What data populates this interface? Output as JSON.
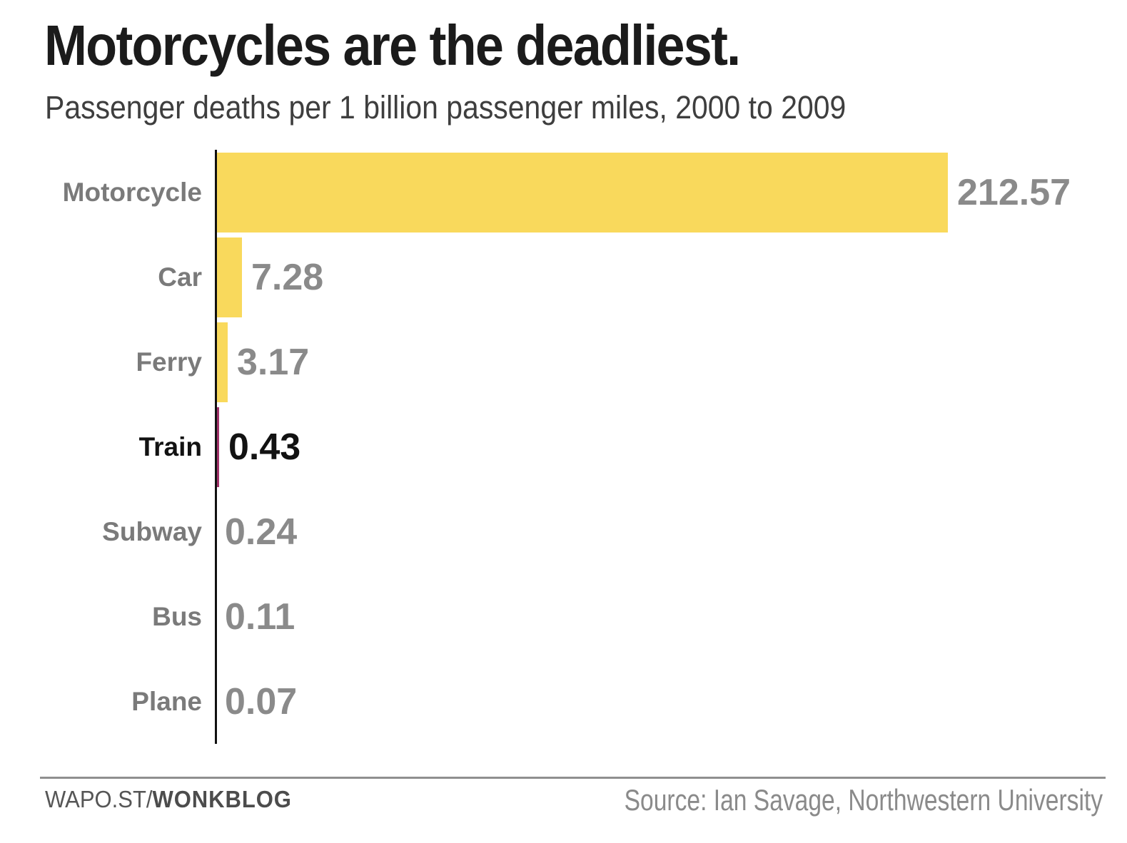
{
  "header": {
    "title": "Motorcycles are the deadliest.",
    "subtitle": "Passenger deaths per 1 billion passenger miles, 2000 to 2009"
  },
  "chart_data": {
    "type": "bar",
    "orientation": "horizontal",
    "title": "Motorcycles are the deadliest.",
    "subtitle": "Passenger deaths per 1 billion passenger miles, 2000 to 2009",
    "categories": [
      "Motorcycle",
      "Car",
      "Ferry",
      "Train",
      "Subway",
      "Bus",
      "Plane"
    ],
    "values": [
      212.57,
      7.28,
      3.17,
      0.43,
      0.24,
      0.11,
      0.07
    ],
    "value_labels": [
      "212.57",
      "7.28",
      "3.17",
      "0.43",
      "0.24",
      "0.11",
      "0.07"
    ],
    "highlight_category": "Train",
    "xlim": [
      0,
      212.57
    ],
    "xlabel": "",
    "ylabel": "",
    "grid": false,
    "legend": false,
    "colors": {
      "bar": "#f9d95c",
      "highlight_bar": "#a03168",
      "category_label": "#7a7a7a",
      "value_label": "#8a8a8a",
      "highlight_text": "#121212",
      "axis": "#111111"
    }
  },
  "footer": {
    "brand_prefix": "WAPO.ST/",
    "brand_bold": "WONKBLOG",
    "source": "Source: Ian Savage, Northwestern University"
  }
}
